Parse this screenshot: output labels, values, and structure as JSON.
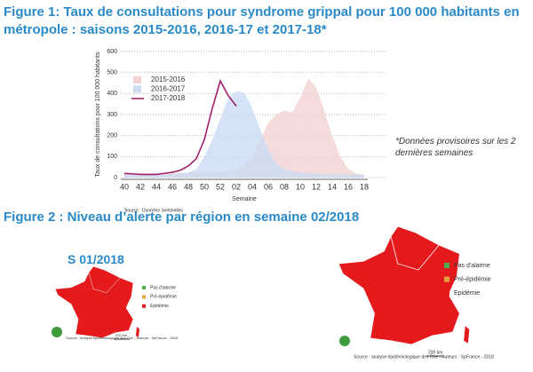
{
  "chart_data": {
    "type": "line",
    "title": "Figure 1: Taux de consultations pour syndrome grippal pour 100 000 habitants en métropole : saisons 2015-2016, 2016-17 et 2017-18*",
    "xlabel": "Semaine",
    "ylabel": "Taux de consultations pour 100 000 habitants",
    "source": "Source : Données Sentinelles",
    "annotation": "*Données provisoires sur les 2 dernières semaines",
    "categories": [
      "40",
      null,
      "42",
      null,
      "44",
      null,
      "46",
      null,
      "48",
      null,
      "50",
      null,
      "52",
      null,
      "02",
      null,
      "04",
      null,
      "06",
      null,
      "08",
      null,
      "10",
      null,
      "12",
      null,
      "14",
      null,
      "16",
      null,
      "18"
    ],
    "ylim": [
      0,
      600
    ],
    "yticks": [
      0,
      100,
      200,
      300,
      400,
      500,
      600
    ],
    "grid": true,
    "series": [
      {
        "name": "2015-2016",
        "color": "#f2d3d3",
        "fill": true,
        "values": [
          20,
          18,
          18,
          18,
          18,
          20,
          20,
          22,
          22,
          25,
          25,
          25,
          28,
          30,
          40,
          60,
          100,
          180,
          260,
          300,
          320,
          310,
          380,
          470,
          430,
          320,
          200,
          100,
          40,
          20,
          15
        ]
      },
      {
        "name": "2016-2017",
        "color": "#c9dcf2",
        "fill": true,
        "values": [
          15,
          15,
          15,
          15,
          15,
          15,
          15,
          20,
          25,
          40,
          100,
          180,
          280,
          380,
          410,
          405,
          330,
          230,
          130,
          70,
          40,
          30,
          25,
          20,
          18,
          15,
          15,
          15,
          15,
          15,
          15
        ]
      },
      {
        "name": "2017-2018",
        "color": "#a3206c",
        "fill": false,
        "values": [
          20,
          18,
          15,
          15,
          15,
          20,
          25,
          35,
          55,
          90,
          180,
          330,
          460,
          390,
          340,
          null,
          null,
          null,
          null,
          null,
          null,
          null,
          null,
          null,
          null,
          null,
          null,
          null,
          null,
          null,
          null
        ]
      }
    ]
  },
  "figure2": {
    "title": "Figure 2 : Niveau d’alerte par région en semaine 02/2018",
    "left_label": "S 01/2018",
    "legend": [
      {
        "label": "Pas d'alarme",
        "color": "#4caf50"
      },
      {
        "label": "Pré-épidémie",
        "color": "#e8a33c"
      },
      {
        "label": "Epidémie",
        "color": "#e41a1c"
      }
    ],
    "source": "Source : analyse épidémiologique des Cire - Auteurs : SpFrance - 2018",
    "scale": "200 km"
  }
}
